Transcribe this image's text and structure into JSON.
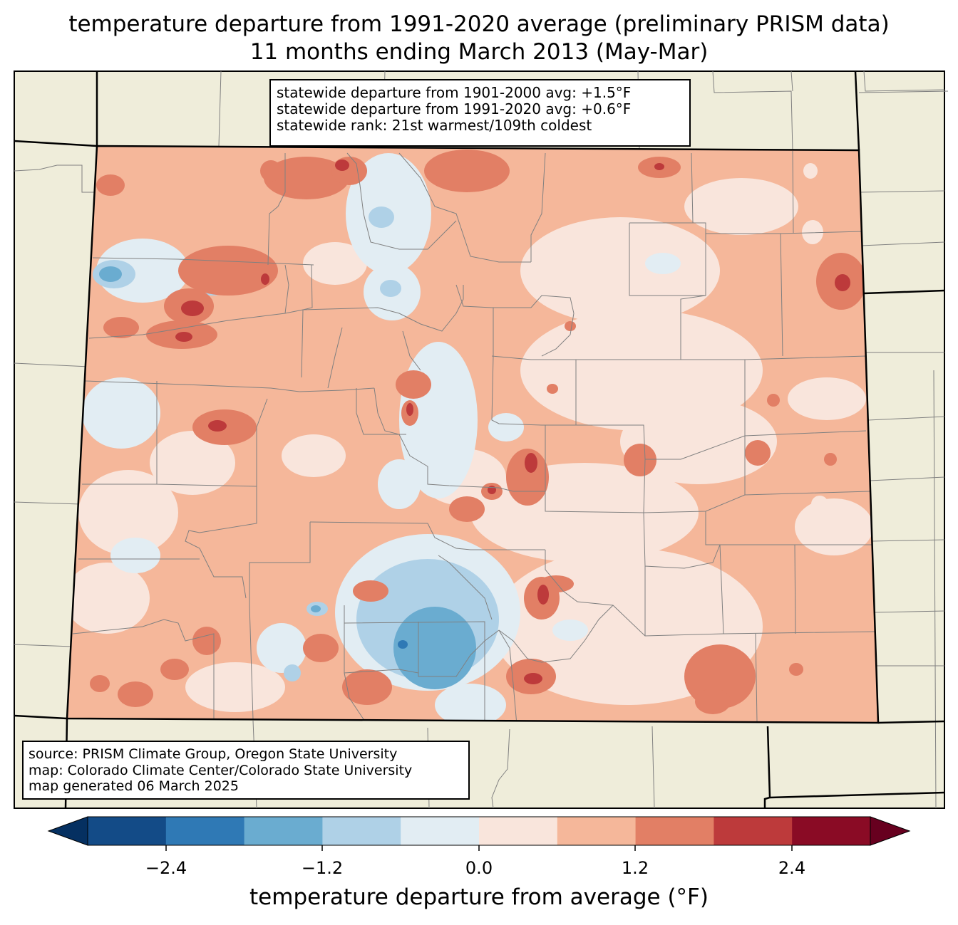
{
  "title": {
    "line1": "temperature departure from 1991-2020 average (preliminary PRISM data)",
    "line2": "11 months ending March 2013 (May-Mar)"
  },
  "stats": {
    "line1": "statewide departure from 1901-2000 avg: +1.5°F",
    "line2": "statewide departure from 1991-2020 avg: +0.6°F",
    "line3": "statewide rank: 21st warmest/109th coldest"
  },
  "source": {
    "line1": "source: PRISM Climate Group, Oregon State University",
    "line2": "map: Colorado Climate Center/Colorado State University",
    "line3": "map generated 06 March 2025"
  },
  "colorbar": {
    "label": "temperature departure from average (°F)",
    "ticks": [
      "−2.4",
      "−1.2",
      "0.0",
      "1.2",
      "2.4"
    ],
    "bins": [
      {
        "range": "< -3.0",
        "color": "#053061"
      },
      {
        "range": "-3.0 to -2.4",
        "color": "#134b87"
      },
      {
        "range": "-2.4 to -1.8",
        "color": "#2f79b5"
      },
      {
        "range": "-1.8 to -1.2",
        "color": "#6aacd0"
      },
      {
        "range": "-1.2 to -0.6",
        "color": "#afd1e7"
      },
      {
        "range": "-0.6 to 0.0",
        "color": "#e2edf3"
      },
      {
        "range": "0.0 to 0.6",
        "color": "#f9e5dc"
      },
      {
        "range": "0.6 to 1.2",
        "color": "#f5b79a"
      },
      {
        "range": "1.2 to 1.8",
        "color": "#e27f65"
      },
      {
        "range": "1.8 to 2.4",
        "color": "#bd3a3b"
      },
      {
        "range": "2.4 to 3.0",
        "color": "#8a0b25"
      },
      {
        "range": "> 3.0",
        "color": "#67001f"
      }
    ]
  },
  "colors": {
    "land": "#efedda",
    "state_border": "#000000",
    "county_border": "#808080"
  }
}
